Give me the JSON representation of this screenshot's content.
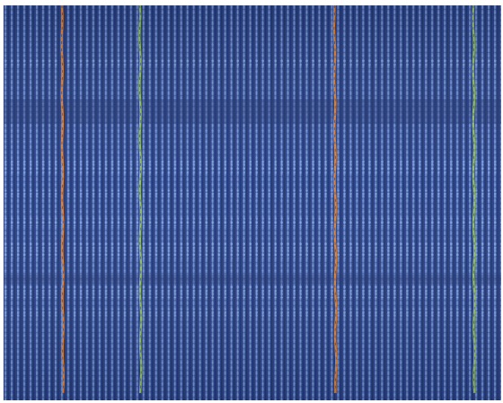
{
  "image": {
    "subject": "",
    "colors": {
      "ground": "#2b4389",
      "ground_dark": "#223672",
      "rib_light": "#6f93d6",
      "rib_mid": "#5676bb",
      "rib_shadow": "#172955",
      "weft_highlight": "#8fb2ef",
      "stripe_orange": "#d9823f",
      "stripe_green": "#8fbc6d"
    },
    "stripes": [
      {
        "name": "orange-stripe-1",
        "color": "#d9823f"
      },
      {
        "name": "green-stripe-1",
        "color": "#8fbc6d"
      },
      {
        "name": "orange-stripe-2",
        "color": "#d9823f"
      },
      {
        "name": "green-stripe-2",
        "color": "#8fbc6d"
      }
    ]
  }
}
